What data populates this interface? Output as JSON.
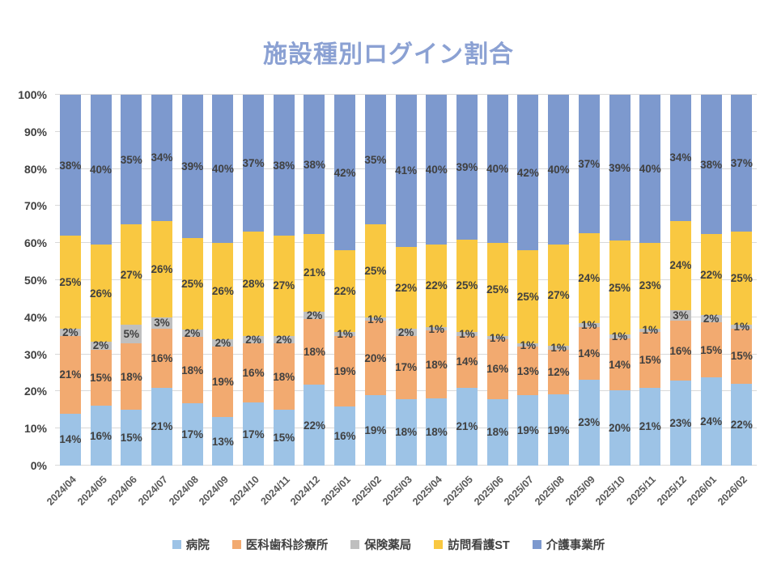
{
  "chart_data": {
    "type": "bar",
    "stacking": "percent",
    "title": "施設種別ログイン割合",
    "categories": [
      "2024/04",
      "2024/05",
      "2024/06",
      "2024/07",
      "2024/08",
      "2024/09",
      "2024/10",
      "2024/11",
      "2024/12",
      "2025/01",
      "2025/02",
      "2025/03",
      "2025/04",
      "2025/05",
      "2025/06",
      "2025/07",
      "2025/08",
      "2025/09",
      "2025/10",
      "2025/11",
      "2025/12",
      "2026/01",
      "2026/02"
    ],
    "series": [
      {
        "name": "病院",
        "color": "#9DC3E6",
        "values": [
          14,
          16,
          15,
          21,
          17,
          13,
          17,
          15,
          22,
          16,
          19,
          18,
          18,
          21,
          18,
          19,
          19,
          23,
          20,
          21,
          23,
          24,
          22
        ]
      },
      {
        "name": "医科歯科診療所",
        "color": "#F2AA70",
        "values": [
          21,
          15,
          18,
          16,
          18,
          19,
          16,
          18,
          18,
          19,
          20,
          17,
          18,
          14,
          16,
          13,
          12,
          14,
          14,
          15,
          16,
          15,
          15
        ]
      },
      {
        "name": "保険薬局",
        "color": "#BFBFBF",
        "values": [
          2,
          2,
          5,
          3,
          2,
          2,
          2,
          2,
          2,
          1,
          1,
          2,
          1,
          1,
          1,
          1,
          1,
          1,
          1,
          1,
          3,
          2,
          1
        ]
      },
      {
        "name": "訪問看護ST",
        "color": "#F9C841",
        "values": [
          25,
          26,
          27,
          26,
          25,
          26,
          28,
          27,
          21,
          22,
          25,
          22,
          22,
          25,
          25,
          25,
          27,
          24,
          25,
          23,
          24,
          22,
          25
        ]
      },
      {
        "name": "介護事業所",
        "color": "#7D99CE",
        "values": [
          38,
          40,
          35,
          34,
          39,
          40,
          37,
          38,
          38,
          42,
          35,
          41,
          40,
          39,
          40,
          42,
          40,
          37,
          39,
          40,
          34,
          38,
          37
        ]
      }
    ],
    "value_suffix": "%",
    "y_axis": {
      "min": 0,
      "max": 100,
      "step": 10,
      "suffix": "%"
    },
    "grid": true,
    "legend_position": "bottom",
    "title_color": "#8BA1D3"
  }
}
